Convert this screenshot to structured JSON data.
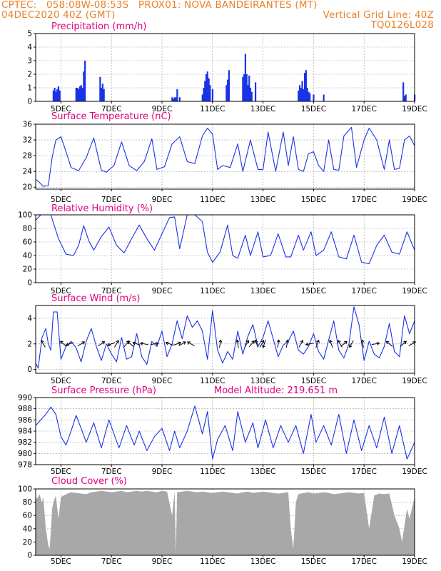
{
  "header": {
    "line1": "CPTEC:   058:08W-08:53S   PROX01: NOVA BANDEIRANTES (MT)",
    "line2_left": "04DEC2020 40Z (GMT)",
    "line2_right": "Vertical Grid Line: 40Z",
    "line3_right": "TQ0126L028"
  },
  "colors": {
    "header": "#e8822a",
    "title": "#e0007f",
    "series": "#1a33e6",
    "cloud": "#a8a8a8",
    "grid": "#9a9a9a"
  },
  "x_axis": {
    "range_days": [
      4.0,
      19.0
    ],
    "tick_labels": [
      "5DEC",
      "7DEC",
      "9DEC",
      "11DEC",
      "13DEC",
      "15DEC",
      "17DEC",
      "19DEC"
    ],
    "tick_days": [
      5,
      7,
      9,
      11,
      13,
      15,
      17,
      19
    ]
  },
  "chart_data": [
    {
      "id": "precip",
      "type": "bar",
      "title": "Precipitation (mm/h)",
      "ylim": [
        0,
        5
      ],
      "yticks": [
        0,
        1,
        2,
        3,
        4,
        5
      ],
      "grid": true,
      "x": [
        4.7,
        4.75,
        4.8,
        4.85,
        4.9,
        4.95,
        5.6,
        5.65,
        5.7,
        5.75,
        5.8,
        5.85,
        5.9,
        5.95,
        6.55,
        6.6,
        6.65,
        6.7,
        9.4,
        9.45,
        9.5,
        9.55,
        9.6,
        9.7,
        10.6,
        10.65,
        10.7,
        10.75,
        10.8,
        10.85,
        10.9,
        11.0,
        11.55,
        11.6,
        11.65,
        12.2,
        12.25,
        12.3,
        12.35,
        12.4,
        12.45,
        12.5,
        12.55,
        12.7,
        14.4,
        14.45,
        14.5,
        14.55,
        14.6,
        14.65,
        14.7,
        14.75,
        14.8,
        14.85,
        15.0,
        15.4,
        18.55,
        18.6,
        18.65,
        19.0
      ],
      "values": [
        0.8,
        1.0,
        0.7,
        0.9,
        1.1,
        0.8,
        1.0,
        1.0,
        0.9,
        1.1,
        1.2,
        1.0,
        2.2,
        3.0,
        1.8,
        1.0,
        1.3,
        0.9,
        0.3,
        0.2,
        0.3,
        0.3,
        0.9,
        0.3,
        0.5,
        1.0,
        1.5,
        2.0,
        2.2,
        1.7,
        1.2,
        0.9,
        1.2,
        1.6,
        2.3,
        1.8,
        2.0,
        3.5,
        2.0,
        1.2,
        1.9,
        1.0,
        0.7,
        1.4,
        0.8,
        1.2,
        1.0,
        1.5,
        0.9,
        2.1,
        2.3,
        1.0,
        0.7,
        0.6,
        0.5,
        0.5,
        1.4,
        0.4,
        0.5,
        0.5
      ]
    },
    {
      "id": "temp",
      "type": "line",
      "title": "Surface Temperature (nC)",
      "ylim": [
        19.5,
        36
      ],
      "yticks": [
        20,
        24,
        28,
        32,
        36
      ],
      "grid": true,
      "x": [
        4.0,
        4.15,
        4.3,
        4.5,
        4.65,
        4.8,
        5.0,
        5.2,
        5.4,
        5.7,
        6.0,
        6.3,
        6.6,
        6.8,
        7.1,
        7.4,
        7.7,
        8.0,
        8.3,
        8.6,
        8.8,
        9.1,
        9.4,
        9.7,
        10.0,
        10.3,
        10.6,
        10.8,
        11.0,
        11.2,
        11.4,
        11.7,
        12.0,
        12.2,
        12.5,
        12.8,
        13.0,
        13.2,
        13.5,
        13.8,
        14.0,
        14.2,
        14.4,
        14.6,
        14.8,
        15.0,
        15.2,
        15.4,
        15.6,
        15.8,
        16.0,
        16.2,
        16.5,
        16.7,
        17.0,
        17.2,
        17.5,
        17.8,
        18.0,
        18.2,
        18.4,
        18.6,
        18.8,
        19.0
      ],
      "values": [
        22.0,
        21.2,
        20.2,
        20.4,
        27.5,
        32.0,
        32.8,
        29.0,
        25.0,
        24.2,
        27.5,
        32.5,
        24.3,
        23.8,
        25.5,
        31.5,
        25.5,
        24.2,
        26.5,
        32.3,
        24.5,
        25.2,
        31.0,
        32.8,
        26.5,
        26.0,
        33.0,
        35.0,
        33.5,
        24.5,
        25.5,
        25.0,
        31.0,
        24.0,
        32.0,
        24.5,
        24.5,
        34.0,
        24.0,
        34.0,
        25.5,
        32.8,
        24.5,
        24.0,
        28.5,
        29.0,
        25.5,
        24.0,
        32.0,
        24.5,
        24.3,
        33.0,
        35.2,
        25.0,
        32.0,
        35.0,
        32.0,
        24.5,
        32.0,
        24.5,
        24.8,
        32.0,
        33.0,
        30.5
      ]
    },
    {
      "id": "rh",
      "type": "line",
      "title": "Relative Humidity (%)",
      "ylim": [
        0,
        100
      ],
      "yticks": [
        0,
        20,
        40,
        60,
        80,
        100
      ],
      "grid": true,
      "x": [
        4.0,
        4.2,
        4.4,
        4.6,
        4.9,
        5.2,
        5.5,
        5.7,
        5.9,
        6.1,
        6.3,
        6.6,
        6.9,
        7.2,
        7.5,
        7.8,
        8.1,
        8.4,
        8.7,
        9.0,
        9.3,
        9.5,
        9.7,
        10.0,
        10.3,
        10.6,
        10.8,
        11.0,
        11.3,
        11.6,
        11.8,
        12.0,
        12.3,
        12.5,
        12.8,
        13.0,
        13.3,
        13.6,
        13.9,
        14.1,
        14.4,
        14.6,
        14.9,
        15.1,
        15.4,
        15.7,
        16.0,
        16.3,
        16.6,
        16.9,
        17.2,
        17.5,
        17.8,
        18.1,
        18.4,
        18.7,
        19.0
      ],
      "values": [
        92,
        100,
        100,
        100,
        65,
        42,
        40,
        55,
        84,
        62,
        48,
        68,
        82,
        55,
        44,
        65,
        85,
        65,
        48,
        72,
        96,
        97,
        50,
        100,
        100,
        90,
        45,
        30,
        45,
        85,
        40,
        36,
        70,
        40,
        75,
        38,
        40,
        72,
        38,
        38,
        70,
        48,
        75,
        40,
        48,
        75,
        38,
        35,
        70,
        30,
        28,
        55,
        70,
        45,
        42,
        75,
        48
      ]
    },
    {
      "id": "wind",
      "type": "line",
      "title": "Surface Wind (m/s)",
      "ylim": [
        -0.3,
        5
      ],
      "yticks": [
        0,
        2,
        4
      ],
      "grid": true,
      "x": [
        4.0,
        4.1,
        4.25,
        4.4,
        4.5,
        4.6,
        4.7,
        4.85,
        5.0,
        5.2,
        5.4,
        5.6,
        5.8,
        6.0,
        6.2,
        6.4,
        6.6,
        6.8,
        7.0,
        7.2,
        7.4,
        7.6,
        7.8,
        8.0,
        8.2,
        8.4,
        8.6,
        8.8,
        9.0,
        9.2,
        9.4,
        9.6,
        9.8,
        10.0,
        10.2,
        10.4,
        10.6,
        10.8,
        11.0,
        11.2,
        11.4,
        11.6,
        11.8,
        12.0,
        12.2,
        12.4,
        12.6,
        12.8,
        13.0,
        13.2,
        13.4,
        13.6,
        13.8,
        14.0,
        14.2,
        14.4,
        14.6,
        14.8,
        15.0,
        15.2,
        15.4,
        15.6,
        15.8,
        16.0,
        16.2,
        16.4,
        16.6,
        16.8,
        17.0,
        17.2,
        17.4,
        17.6,
        17.8,
        18.0,
        18.2,
        18.4,
        18.6,
        18.8,
        19.0
      ],
      "values": [
        0.5,
        0.1,
        2.5,
        3.2,
        2.0,
        1.5,
        4.5,
        4.5,
        0.8,
        1.8,
        2.2,
        1.7,
        0.6,
        2.2,
        3.2,
        1.8,
        0.7,
        2.0,
        1.2,
        0.6,
        2.5,
        0.8,
        1.0,
        2.8,
        1.0,
        0.4,
        2.2,
        1.8,
        3.0,
        1.0,
        2.0,
        3.8,
        2.4,
        4.2,
        3.3,
        3.8,
        3.0,
        0.8,
        4.6,
        1.5,
        0.5,
        1.4,
        0.8,
        3.0,
        1.2,
        2.6,
        3.5,
        1.8,
        2.5,
        3.8,
        2.4,
        1.0,
        1.9,
        2.2,
        3.0,
        1.5,
        1.2,
        1.8,
        2.8,
        1.4,
        0.8,
        2.3,
        3.8,
        1.5,
        0.9,
        2.0,
        4.9,
        3.5,
        0.7,
        2.2,
        1.2,
        0.9,
        1.8,
        3.6,
        1.4,
        1.0,
        4.2,
        2.8,
        3.8
      ]
    },
    {
      "id": "pres",
      "type": "line",
      "title": "Surface Pressure (hPa)",
      "annotation": "Model Altitude: 219.651 m",
      "ylim": [
        978,
        990
      ],
      "yticks": [
        978,
        980,
        982,
        984,
        986,
        988,
        990
      ],
      "grid": true,
      "x": [
        4.0,
        4.2,
        4.4,
        4.6,
        4.8,
        5.0,
        5.2,
        5.4,
        5.6,
        5.8,
        6.0,
        6.3,
        6.6,
        6.9,
        7.1,
        7.3,
        7.6,
        7.9,
        8.1,
        8.4,
        8.7,
        9.0,
        9.3,
        9.5,
        9.7,
        10.0,
        10.3,
        10.6,
        10.8,
        11.0,
        11.2,
        11.5,
        11.8,
        12.0,
        12.3,
        12.6,
        12.8,
        13.1,
        13.4,
        13.7,
        14.0,
        14.3,
        14.6,
        14.9,
        15.1,
        15.4,
        15.7,
        16.0,
        16.3,
        16.6,
        16.9,
        17.2,
        17.5,
        17.8,
        18.1,
        18.4,
        18.7,
        19.0
      ],
      "values": [
        985,
        986,
        987,
        988.3,
        987,
        983,
        981.5,
        984,
        986.8,
        984.5,
        982,
        985.5,
        981,
        986,
        983.5,
        981,
        985,
        981.5,
        984,
        980.5,
        983,
        984.5,
        980.5,
        984,
        981,
        984,
        988.5,
        983.5,
        987.5,
        979,
        982.5,
        985,
        980.5,
        987.5,
        982,
        985.5,
        981,
        986,
        981,
        985,
        982,
        985,
        980,
        987,
        982,
        985,
        981.5,
        987,
        980,
        986,
        980.5,
        985,
        981,
        986.5,
        980,
        985,
        979,
        982
      ]
    },
    {
      "id": "cloud",
      "type": "area",
      "title": "Cloud Cover (%)",
      "ylim": [
        0,
        100
      ],
      "yticks": [
        0,
        20,
        40,
        60,
        80,
        100
      ],
      "grid": true,
      "x": [
        4.0,
        4.05,
        4.1,
        4.15,
        4.25,
        4.3,
        4.4,
        4.5,
        4.55,
        4.6,
        4.65,
        4.7,
        4.8,
        4.9,
        5.0,
        5.2,
        5.4,
        5.6,
        5.8,
        6.0,
        6.2,
        6.4,
        6.6,
        6.8,
        7.0,
        7.2,
        7.4,
        7.6,
        7.8,
        8.0,
        8.2,
        8.4,
        8.6,
        8.8,
        9.0,
        9.2,
        9.4,
        9.5,
        9.55,
        9.6,
        9.8,
        10.0,
        10.2,
        10.4,
        10.6,
        10.8,
        11.0,
        11.2,
        11.4,
        11.6,
        11.8,
        12.0,
        12.2,
        12.4,
        12.6,
        12.8,
        13.0,
        13.2,
        13.4,
        13.6,
        13.8,
        14.0,
        14.1,
        14.2,
        14.3,
        14.4,
        14.6,
        14.8,
        15.0,
        15.2,
        15.4,
        15.6,
        15.8,
        16.0,
        16.2,
        16.4,
        16.6,
        16.8,
        17.0,
        17.2,
        17.4,
        17.6,
        17.8,
        18.0,
        18.2,
        18.4,
        18.5,
        18.6,
        18.7,
        18.8,
        19.0
      ],
      "values": [
        90,
        85,
        88,
        92,
        80,
        88,
        40,
        15,
        10,
        35,
        70,
        80,
        90,
        55,
        88,
        92,
        95,
        94,
        93,
        92,
        95,
        96,
        97,
        96,
        95,
        96,
        97,
        95,
        96,
        97,
        96,
        97,
        96,
        95,
        97,
        96,
        60,
        96,
        3,
        95,
        96,
        97,
        96,
        95,
        96,
        95,
        94,
        95,
        96,
        95,
        94,
        93,
        95,
        96,
        94,
        95,
        96,
        95,
        94,
        93,
        94,
        95,
        40,
        10,
        80,
        92,
        94,
        95,
        93,
        94,
        95,
        94,
        92,
        93,
        94,
        95,
        94,
        93,
        94,
        40,
        90,
        93,
        92,
        93,
        60,
        40,
        20,
        45,
        70,
        55,
        88
      ]
    }
  ],
  "wind_arrows": [
    {
      "day": 4.3,
      "angle": -120
    },
    {
      "day": 5.1,
      "angle": -140
    },
    {
      "day": 5.35,
      "angle": 160
    },
    {
      "day": 5.8,
      "angle": -30
    },
    {
      "day": 6.6,
      "angle": -35
    },
    {
      "day": 7.0,
      "angle": 160
    },
    {
      "day": 7.2,
      "angle": -60
    },
    {
      "day": 7.6,
      "angle": -50
    },
    {
      "day": 7.75,
      "angle": -140
    },
    {
      "day": 8.0,
      "angle": -160
    },
    {
      "day": 8.3,
      "angle": -170
    },
    {
      "day": 8.7,
      "angle": -10
    },
    {
      "day": 9.3,
      "angle": -160
    },
    {
      "day": 9.6,
      "angle": -20
    },
    {
      "day": 9.8,
      "angle": -30
    },
    {
      "day": 10.15,
      "angle": -150
    },
    {
      "day": 11.3,
      "angle": -80
    },
    {
      "day": 12.0,
      "angle": -100
    },
    {
      "day": 12.35,
      "angle": -60
    },
    {
      "day": 12.55,
      "angle": -50
    },
    {
      "day": 12.75,
      "angle": -110
    },
    {
      "day": 12.95,
      "angle": -60
    },
    {
      "day": 13.05,
      "angle": 110
    },
    {
      "day": 13.6,
      "angle": -80
    },
    {
      "day": 13.95,
      "angle": -80
    },
    {
      "day": 14.5,
      "angle": -60
    },
    {
      "day": 14.85,
      "angle": 170
    },
    {
      "day": 15.15,
      "angle": -70
    },
    {
      "day": 15.7,
      "angle": -110
    },
    {
      "day": 16.05,
      "angle": -120
    },
    {
      "day": 16.2,
      "angle": -40
    },
    {
      "day": 16.5,
      "angle": 120
    },
    {
      "day": 16.95,
      "angle": -100
    },
    {
      "day": 17.45,
      "angle": -10
    },
    {
      "day": 18.0,
      "angle": -140
    },
    {
      "day": 18.55,
      "angle": -40
    },
    {
      "day": 18.9,
      "angle": -30
    }
  ]
}
